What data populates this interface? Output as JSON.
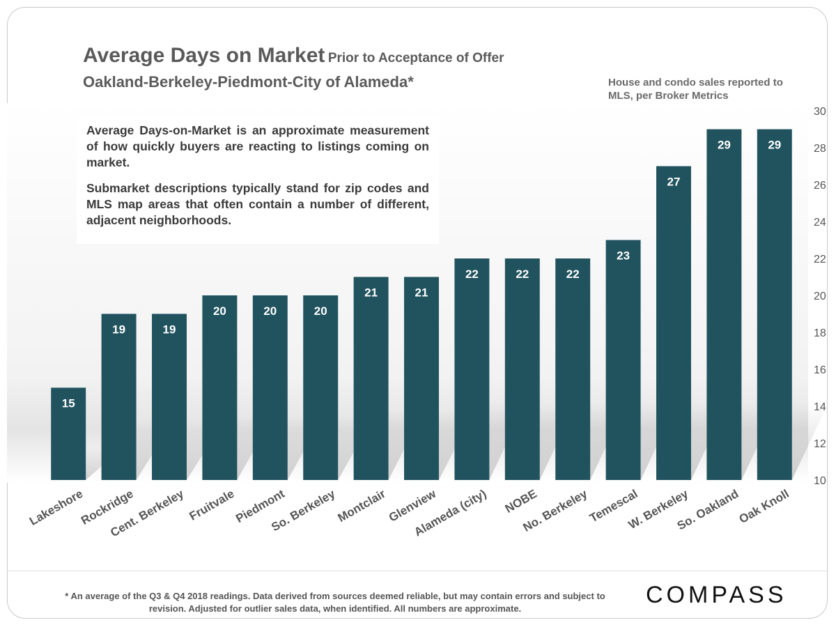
{
  "header": {
    "title": "Average Days on Market",
    "title_suffix": "Prior to Acceptance of Offer",
    "subtitle": "Oakland-Berkeley-Piedmont-City  of Alameda*",
    "source_note": "House and condo sales reported to MLS, per Broker Metrics"
  },
  "callout": {
    "paragraph1": "Average Days-on-Market is an approximate measurement of how quickly buyers are reacting to listings coming on market.",
    "paragraph2": "Submarket descriptions typically stand for zip codes and MLS map areas that often contain a number of different, adjacent neighborhoods."
  },
  "footer": {
    "footnote": "* An average of the Q3 & Q4 2018 readings. Data derived from sources deemed reliable, but may contain errors and subject to revision. Adjusted  for outlier sales data, when identified.  All numbers are approximate.",
    "brand": "COMPASS"
  },
  "chart_data": {
    "type": "bar",
    "title": "Average Days on Market",
    "categories": [
      "Lakeshore",
      "Rockridge",
      "Cent. Berkeley",
      "Fruitvale",
      "Piedmont",
      "So. Berkeley",
      "Montclair",
      "Glenview",
      "Alameda (city)",
      "NOBE",
      "No. Berkeley",
      "Temescal",
      "W. Berkeley",
      "So. Oakland",
      "Oak Knoll"
    ],
    "values": [
      15,
      19,
      19,
      20,
      20,
      20,
      21,
      21,
      22,
      22,
      22,
      23,
      27,
      29,
      29
    ],
    "ylim": [
      10,
      30
    ],
    "yticks": [
      10,
      12,
      14,
      16,
      18,
      20,
      22,
      24,
      26,
      28,
      30
    ],
    "y_axis_side": "right",
    "data_labels": true,
    "grid": false,
    "bar_color": "#21535f",
    "label_color": "#ffffff"
  }
}
